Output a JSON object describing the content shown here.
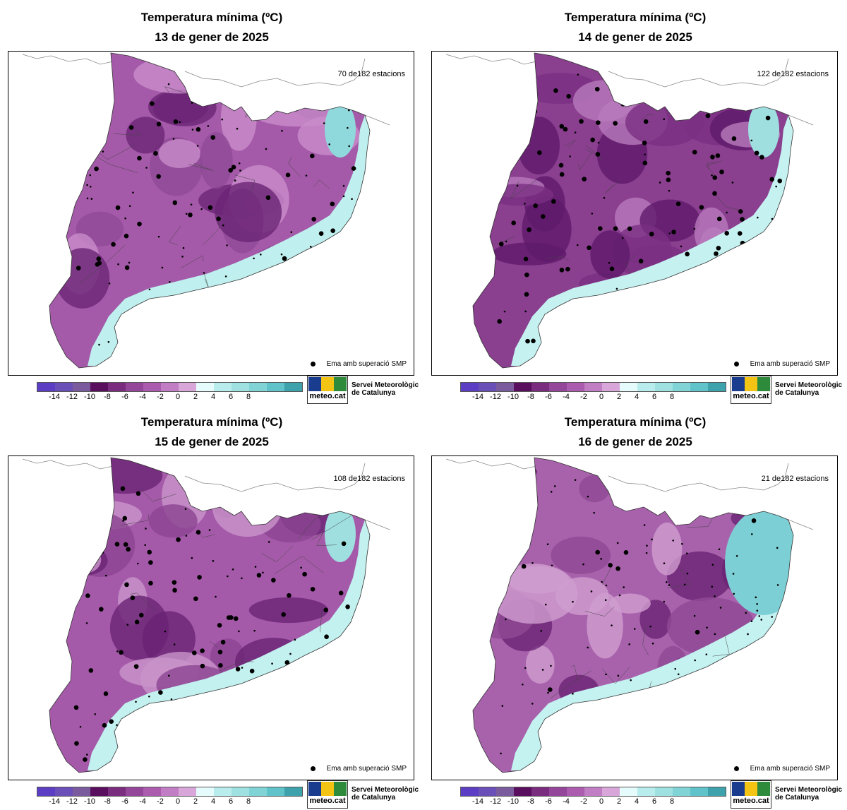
{
  "panels": [
    {
      "title": "Temperatura mínima (ºC)",
      "date": "13 de gener de 2025",
      "stations": "70 de182 estacions",
      "base": "#a45aa8",
      "mid": "#8f4a96",
      "dark": "#6b2575",
      "coastal": "#bff0ef",
      "coastal2": "#8fd9dc",
      "light": "#c98ccb"
    },
    {
      "title": "Temperatura mínima (ºC)",
      "date": "14 de gener de 2025",
      "stations": "122 de182 estacions",
      "base": "#8a3f8f",
      "mid": "#7a2f82",
      "dark": "#5f1a6a",
      "coastal": "#c5f2f1",
      "coastal2": "#9fdfe0",
      "light": "#b87bbc"
    },
    {
      "title": "Temperatura mínima (ºC)",
      "date": "15 de gener de 2025",
      "stations": "108 de182 estacions",
      "base": "#a55aa9",
      "mid": "#8c4592",
      "dark": "#6a2374",
      "coastal": "#c3f1f0",
      "coastal2": "#9fdfe0",
      "light": "#c995cb"
    },
    {
      "title": "Temperatura mínima (ºC)",
      "date": "16 de gener de 2025",
      "stations": "21 de182 estacions",
      "base": "#a862ac",
      "mid": "#8e4a95",
      "dark": "#6a2474",
      "coastal": "#c4f2f1",
      "coastal2": "#7ccfd4",
      "light": "#cf9ed0"
    }
  ],
  "legend_note": "Ema amb superació SMP",
  "colorbar": {
    "colors": [
      "#5b3ec3",
      "#6a4fb8",
      "#7a5b9e",
      "#5a0f5e",
      "#7a2d7e",
      "#94479a",
      "#ab5cae",
      "#c27ec4",
      "#d9a6da",
      "#e6fbfb",
      "#b9ecec",
      "#9fe0e0",
      "#80d4d6",
      "#5fc3c9",
      "#3ea2ac"
    ],
    "ticks": [
      "-14",
      "-12",
      "-10",
      "-8",
      "-6",
      "-4",
      "-2",
      "0",
      "2",
      "4",
      "6",
      "8"
    ]
  },
  "logo": {
    "word": "meteo.cat",
    "line1": "Servei Meteorològic",
    "line2": "de Catalunya"
  }
}
